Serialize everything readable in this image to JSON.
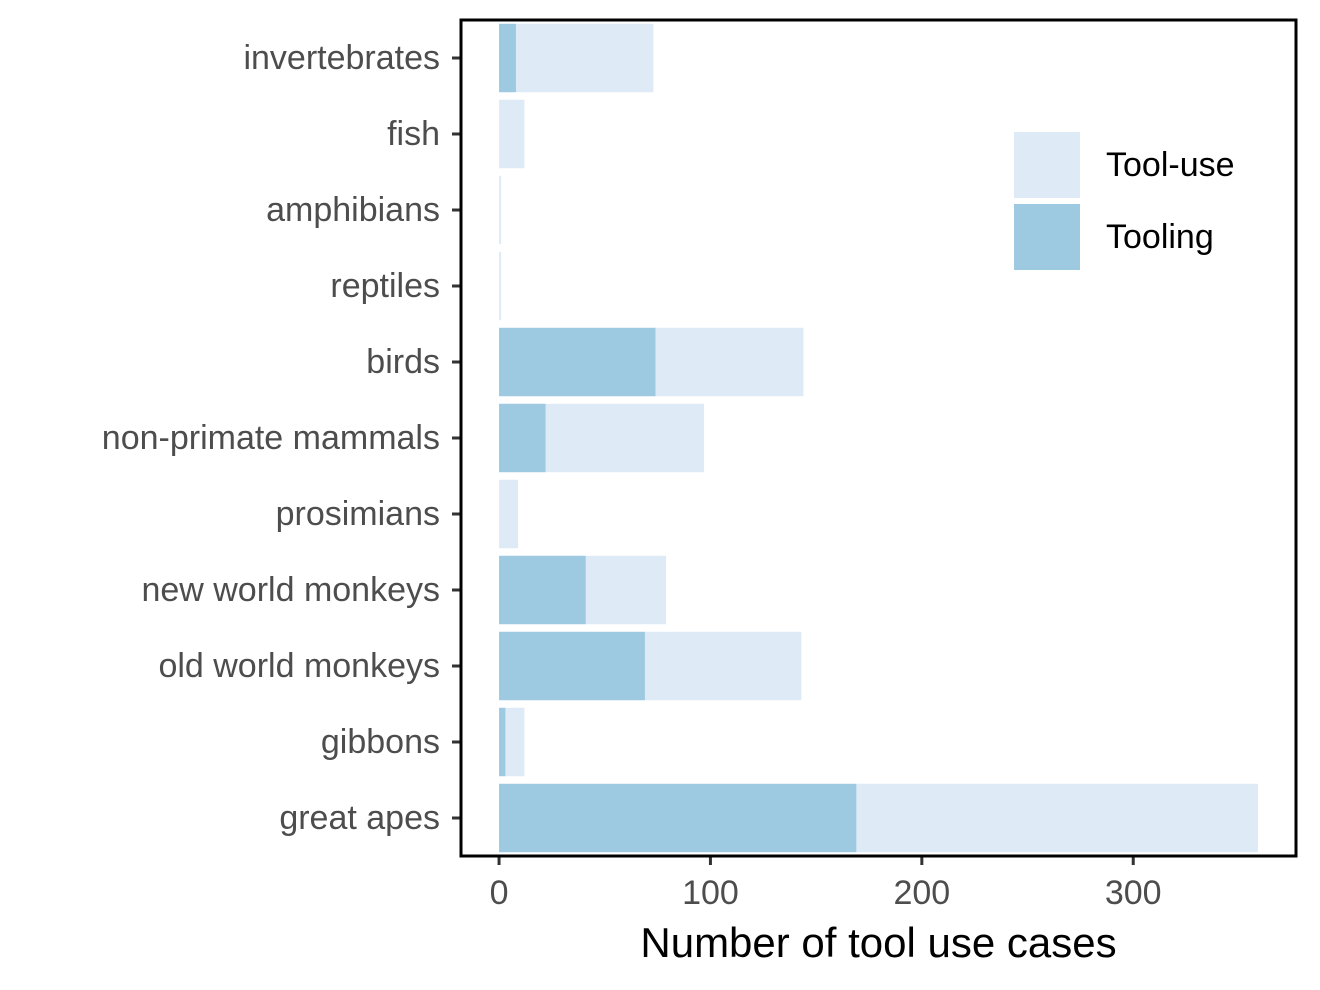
{
  "chart_data": {
    "type": "bar",
    "orientation": "horizontal",
    "stacking": "overlay",
    "categories": [
      "invertebrates",
      "fish",
      "amphibians",
      "reptiles",
      "birds",
      "non-primate mammals",
      "prosimians",
      "new world monkeys",
      "old world monkeys",
      "gibbons",
      "great apes"
    ],
    "series": [
      {
        "name": "Tool-use",
        "color": "#deebf7",
        "values": [
          73,
          12,
          1,
          1,
          144,
          97,
          9,
          79,
          143,
          12,
          359
        ]
      },
      {
        "name": "Tooling",
        "color": "#9ecae1",
        "values": [
          8,
          0,
          0,
          0,
          74,
          22,
          0,
          41,
          69,
          3,
          169
        ]
      }
    ],
    "xlabel": "Number of tool use cases",
    "ylabel": "",
    "xlim": [
      -18,
      377
    ],
    "x_ticks": [
      0,
      100,
      200,
      300
    ],
    "grid": false,
    "legend_position": "top-right"
  }
}
